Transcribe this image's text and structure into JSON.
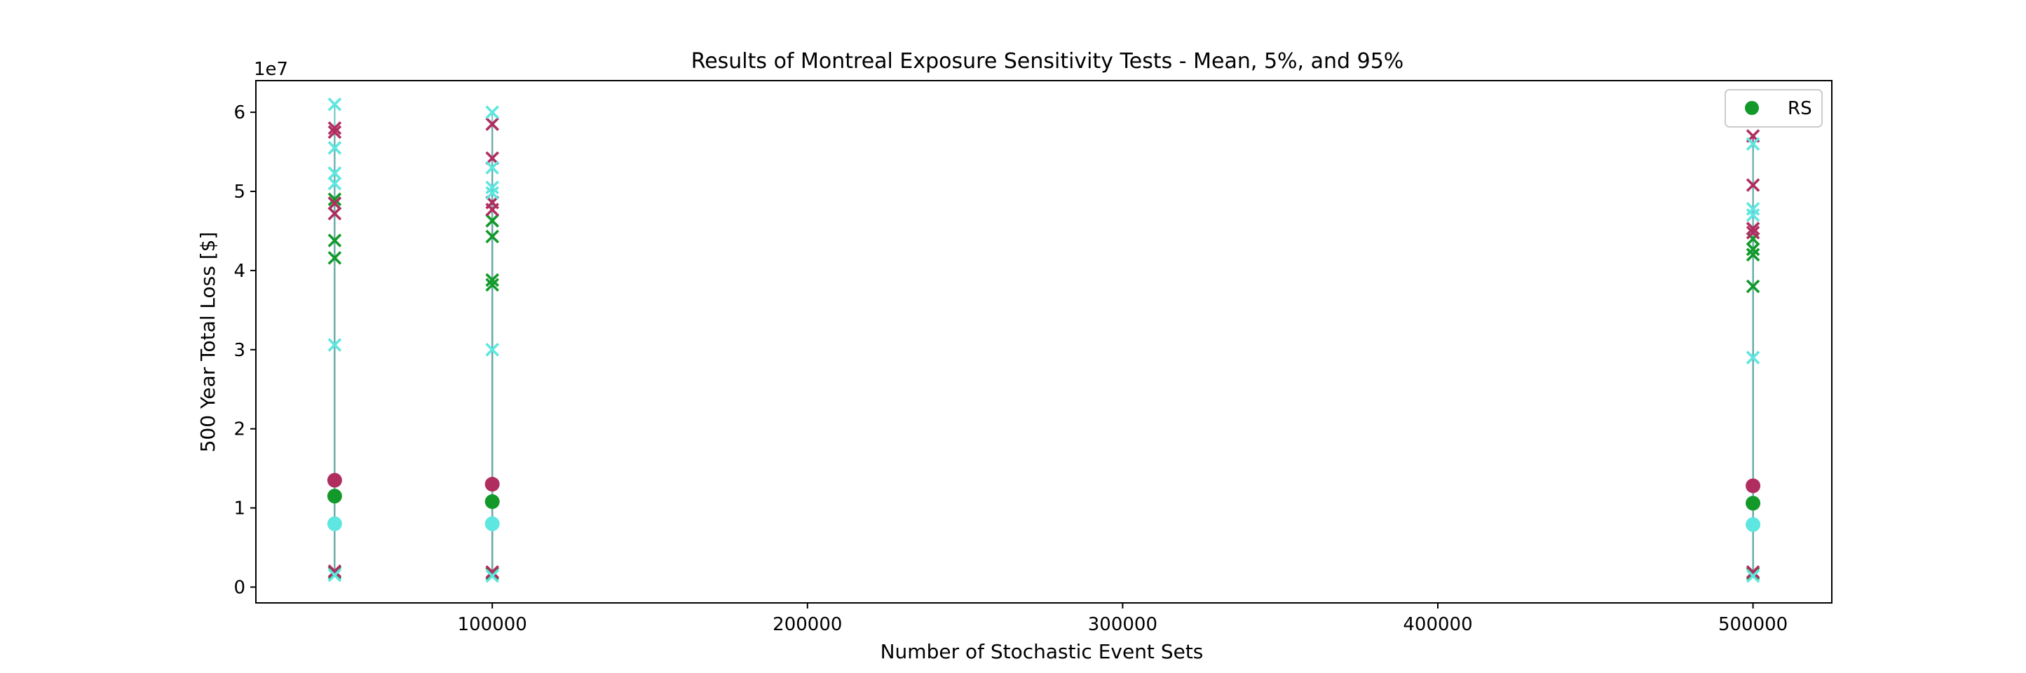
{
  "chart_data": {
    "type": "scatter",
    "title": "Results of Montreal Exposure Sensitivity Tests - Mean, 5%, and 95%",
    "xlabel": "Number of Stochastic Event Sets",
    "ylabel": "500 Year Total Loss [$]",
    "y_offset_label": "1e7",
    "xlim": [
      25000,
      525000
    ],
    "ylim": [
      -2000000,
      64000000
    ],
    "x_ticks": [
      100000,
      200000,
      300000,
      400000,
      500000
    ],
    "x_tick_labels": [
      "100000",
      "200000",
      "300000",
      "400000",
      "500000"
    ],
    "y_ticks": [
      0,
      10000000,
      20000000,
      30000000,
      40000000,
      50000000,
      60000000
    ],
    "y_tick_labels": [
      "0",
      "1",
      "2",
      "3",
      "4",
      "5",
      "6"
    ],
    "grid": false,
    "legend": {
      "position": "top-right",
      "entries": [
        {
          "label": "RS",
          "color": "#12992a",
          "marker": "circle"
        }
      ]
    },
    "series": [
      {
        "name": "RS",
        "color": "#12992a",
        "line_color": "#12992a",
        "points": [
          {
            "x": 50000,
            "mean": 11500000,
            "p5": [
              1800000
            ],
            "p95": [
              48500000,
              49000000,
              43800000,
              41600000
            ]
          },
          {
            "x": 100000,
            "mean": 10800000,
            "p5": [
              1700000
            ],
            "p95": [
              46300000,
              44300000,
              38800000,
              38200000
            ]
          },
          {
            "x": 500000,
            "mean": 10600000,
            "p5": [
              1700000
            ],
            "p95": [
              44000000,
              42700000,
              42000000,
              38000000
            ]
          }
        ]
      },
      {
        "color": "#b02d5f",
        "line_color": "#8a3a5a",
        "points": [
          {
            "x": 50000,
            "mean": 13500000,
            "p5": [
              2000000
            ],
            "p95": [
              58000000,
              57500000,
              48500000,
              47200000
            ]
          },
          {
            "x": 100000,
            "mean": 13000000,
            "p5": [
              1900000
            ],
            "p95": [
              58500000,
              54200000,
              48600000,
              47700000
            ]
          },
          {
            "x": 500000,
            "mean": 12800000,
            "p5": [
              1900000
            ],
            "p95": [
              57000000,
              50800000,
              45300000,
              44800000
            ]
          }
        ]
      },
      {
        "color": "#5ee6e0",
        "line_color": "#5ebfba",
        "points": [
          {
            "x": 50000,
            "mean": 8000000,
            "p5": [
              1500000
            ],
            "p95": [
              61000000,
              55500000,
              52300000,
              51000000,
              30600000
            ]
          },
          {
            "x": 100000,
            "mean": 8000000,
            "p5": [
              1400000
            ],
            "p95": [
              60000000,
              53000000,
              50500000,
              49800000,
              30000000
            ]
          },
          {
            "x": 500000,
            "mean": 7900000,
            "p5": [
              1400000
            ],
            "p95": [
              56000000,
              47800000,
              47000000,
              29000000
            ]
          }
        ]
      }
    ]
  }
}
